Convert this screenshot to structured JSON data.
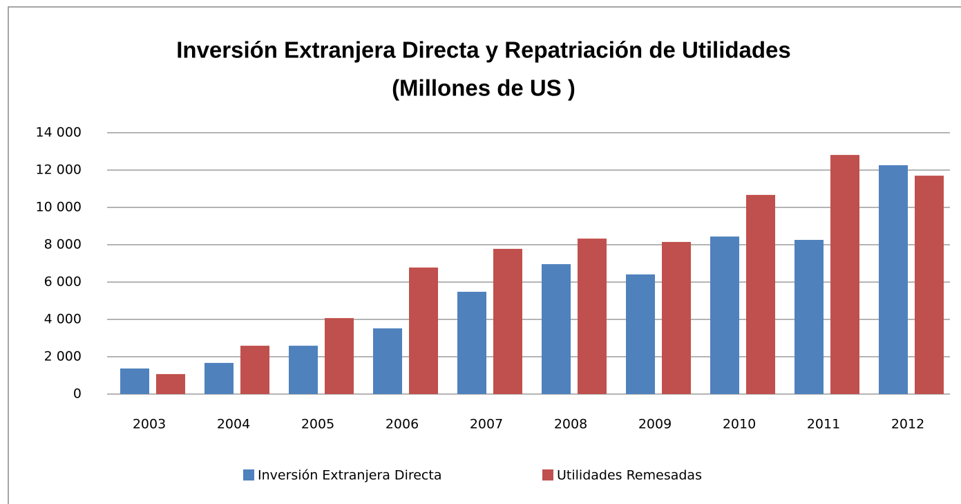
{
  "chart_data": {
    "type": "bar",
    "title": "Inversión Extranjera Directa y Repatriación de Utilidades",
    "subtitle": "(Millones de US )",
    "categories": [
      "2003",
      "2004",
      "2005",
      "2006",
      "2007",
      "2008",
      "2009",
      "2010",
      "2011",
      "2012"
    ],
    "series": [
      {
        "name": "Inversión Extranjera Directa",
        "color": "#4f81bd",
        "values": [
          1370,
          1670,
          2590,
          3520,
          5480,
          6960,
          6410,
          8440,
          8260,
          12260
        ]
      },
      {
        "name": "Utilidades Remesadas",
        "color": "#c0504d",
        "values": [
          1070,
          2590,
          4070,
          6780,
          7780,
          8330,
          8150,
          10670,
          12810,
          11700
        ]
      }
    ],
    "ylim": [
      0,
      14000
    ],
    "yticks": [
      0,
      {
        "value": 2000,
        "label": "2 000"
      },
      {
        "value": 4000,
        "label": "4 000"
      },
      {
        "value": 6000,
        "label": "6 000"
      },
      {
        "value": 8000,
        "label": "8 000"
      },
      {
        "value": 10000,
        "label": "10 000"
      },
      {
        "value": 12000,
        "label": "12 000"
      },
      {
        "value": 14000,
        "label": "14 000"
      }
    ],
    "grid": true,
    "legend": "bottom"
  }
}
